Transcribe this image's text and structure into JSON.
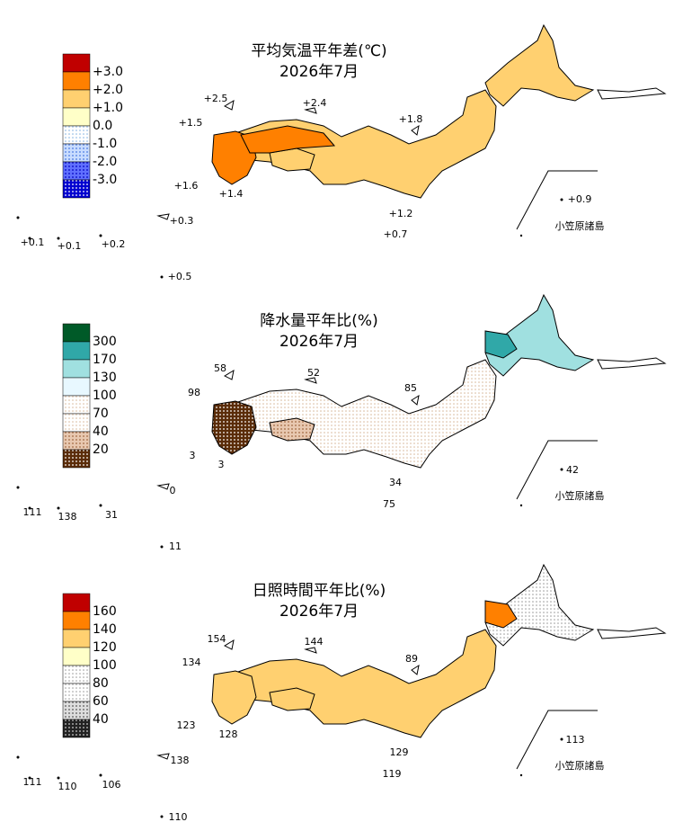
{
  "panels": [
    {
      "title": "平均気温平年差(℃)",
      "subtitle": "2026年7月",
      "legend_labels": [
        "+3.0",
        "+2.0",
        "+1.0",
        "0.0",
        "-1.0",
        "-2.0",
        "-3.0"
      ],
      "station_labels": [
        "+2.5",
        "+2.4",
        "+1.5",
        "+1.8",
        "+1.6",
        "+1.4",
        "+0.9",
        "+1.2",
        "+0.7",
        "+0.3",
        "+0.1",
        "+0.1",
        "+0.2",
        "+0.5"
      ],
      "islands_label": "小笠原諸島"
    },
    {
      "title": "降水量平年比(%)",
      "subtitle": "2026年7月",
      "legend_labels": [
        "300",
        "170",
        "130",
        "100",
        "70",
        "40",
        "20"
      ],
      "station_labels": [
        "58",
        "52",
        "98",
        "85",
        "3",
        "3",
        "42",
        "34",
        "75",
        "0",
        "111",
        "138",
        "31",
        "11"
      ],
      "islands_label": "小笠原諸島"
    },
    {
      "title": "日照時間平年比(%)",
      "subtitle": "2026年7月",
      "legend_labels": [
        "160",
        "140",
        "120",
        "100",
        "80",
        "60",
        "40"
      ],
      "station_labels": [
        "154",
        "144",
        "134",
        "89",
        "123",
        "128",
        "113",
        "129",
        "119",
        "138",
        "111",
        "110",
        "106",
        "110"
      ],
      "islands_label": "小笠原諸島"
    }
  ]
}
